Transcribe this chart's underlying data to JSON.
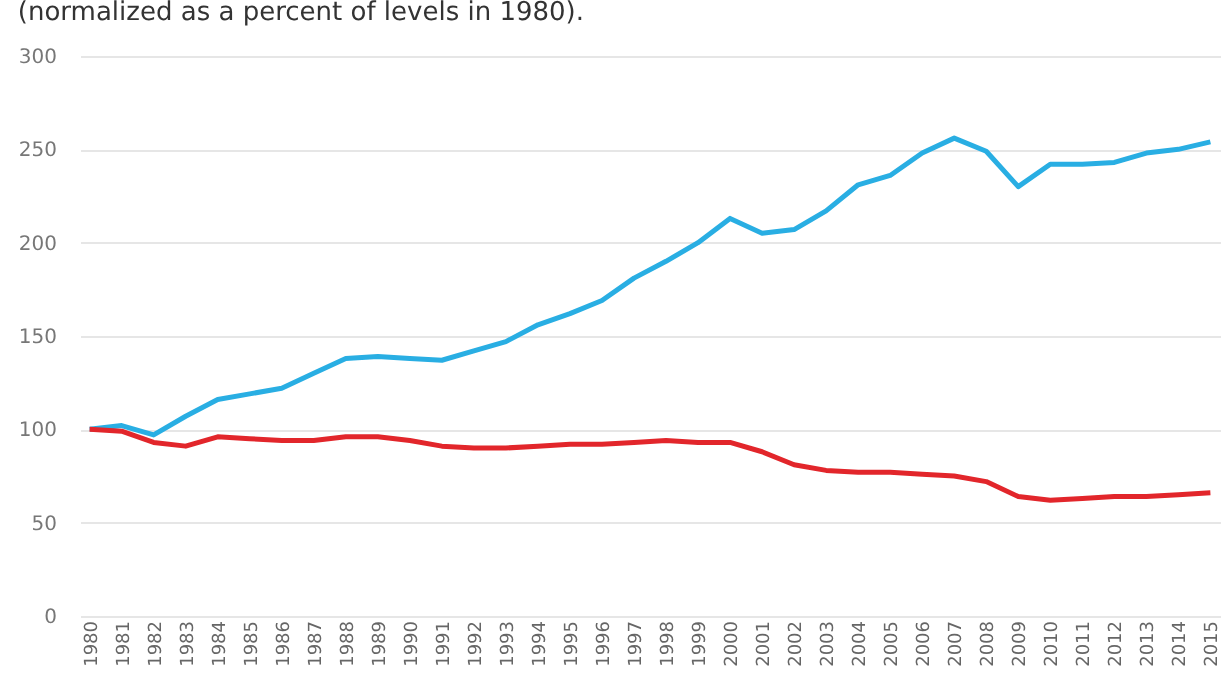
{
  "chart_data": {
    "type": "line",
    "subtitle": "(normalized as a percent of levels in 1980).",
    "categories": [
      "1980",
      "1981",
      "1982",
      "1983",
      "1984",
      "1985",
      "1986",
      "1987",
      "1988",
      "1989",
      "1990",
      "1991",
      "1992",
      "1993",
      "1994",
      "1995",
      "1996",
      "1997",
      "1998",
      "1999",
      "2000",
      "2001",
      "2002",
      "2003",
      "2004",
      "2005",
      "2006",
      "2007",
      "2008",
      "2009",
      "2010",
      "2011",
      "2012",
      "2013",
      "2014",
      "2015"
    ],
    "series": [
      {
        "color": "#29aee3",
        "values": [
          100,
          102,
          97,
          107,
          116,
          119,
          122,
          130,
          138,
          139,
          138,
          137,
          142,
          147,
          156,
          162,
          169,
          181,
          190,
          200,
          213,
          205,
          207,
          217,
          231,
          236,
          248,
          256,
          249,
          230,
          242,
          242,
          243,
          248,
          250,
          254
        ]
      },
      {
        "color": "#e2262b",
        "values": [
          100,
          99,
          93,
          91,
          96,
          95,
          94,
          94,
          96,
          96,
          94,
          91,
          90,
          90,
          91,
          92,
          92,
          93,
          94,
          93,
          93,
          88,
          81,
          78,
          77,
          77,
          76,
          75,
          72,
          64,
          62,
          63,
          64,
          64,
          65,
          66
        ]
      }
    ],
    "ylim": [
      0,
      300
    ],
    "yticks": [
      0,
      50,
      100,
      150,
      200,
      250,
      300
    ],
    "grid": "y",
    "legend": false,
    "marker": "none",
    "line_style": "solid"
  }
}
